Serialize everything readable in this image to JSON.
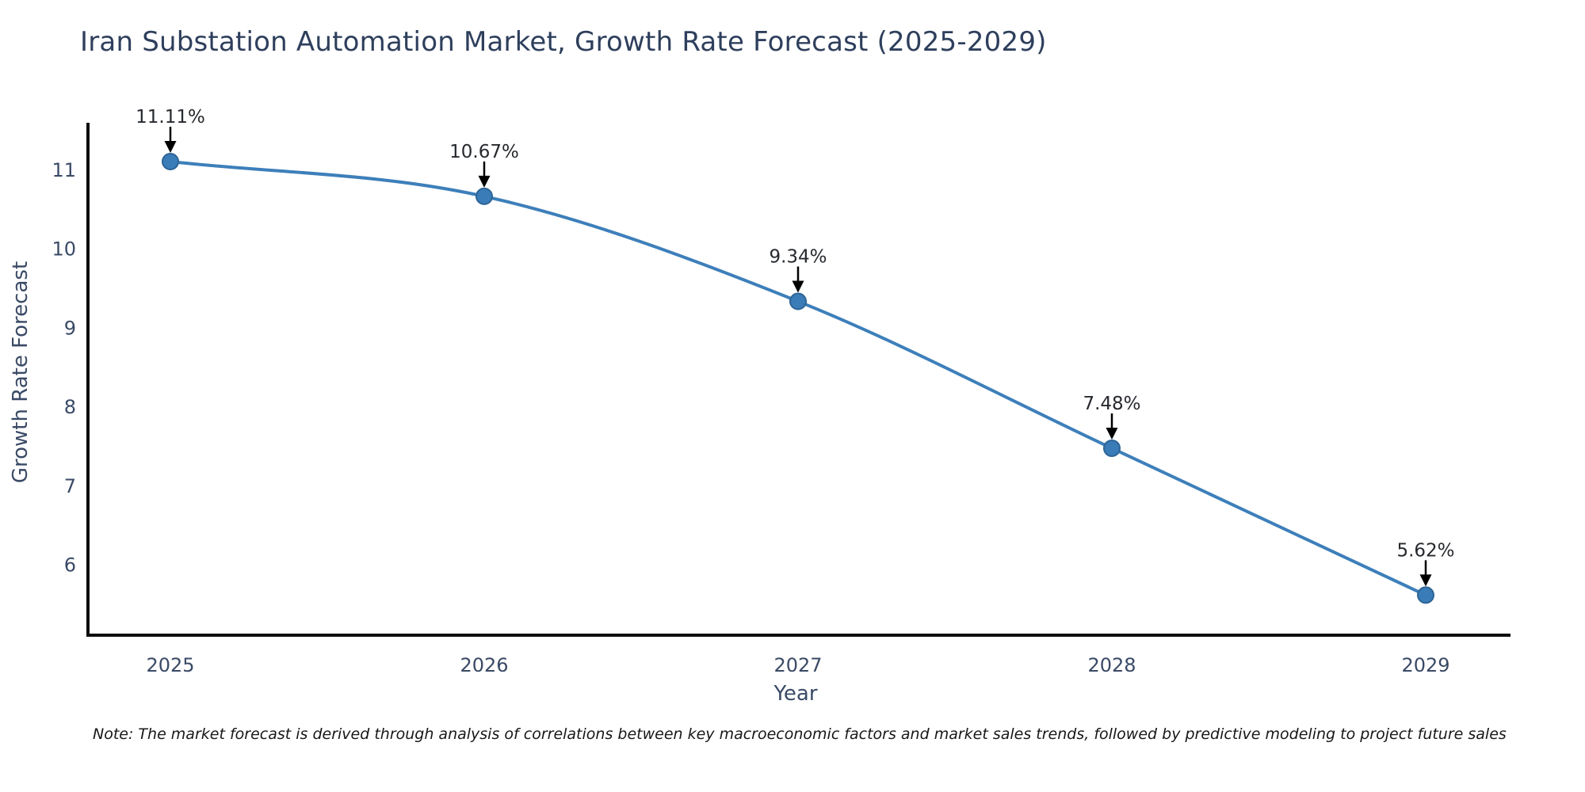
{
  "note": "Note: The market forecast is derived through analysis of correlations between key macroeconomic factors and market sales trends, followed by predictive modeling to project future sales",
  "colors": {
    "background": "#ffffff",
    "title_text": "#2e3f5c",
    "axis_spine": "#0d0d0d",
    "tick_text": "#3a4a66",
    "axis_label_text": "#3a4a66",
    "line": "#3d7fba",
    "marker_fill": "#3a7cb8",
    "marker_edge": "#2d6496",
    "annotation_text": "#26292e",
    "annotation_arrow": "#000000",
    "note_text": "#171717"
  },
  "chart_data": {
    "type": "line",
    "title": "Iran Substation Automation Market, Growth Rate Forecast (2025-2029)",
    "xlabel": "Year",
    "ylabel": "Growth Rate Forecast",
    "x": [
      2025,
      2026,
      2027,
      2028,
      2029
    ],
    "values": [
      11.11,
      10.67,
      9.34,
      7.48,
      5.62
    ],
    "labels": [
      "11.11%",
      "10.67%",
      "9.34%",
      "7.48%",
      "5.62%"
    ],
    "xticks": [
      "2025",
      "2026",
      "2027",
      "2028",
      "2029"
    ],
    "yticks": [
      6,
      7,
      8,
      9,
      10,
      11
    ],
    "ylim": [
      5.1,
      11.6
    ],
    "xlim": [
      2024.73,
      2029.27
    ],
    "grid": false,
    "legend": "none",
    "curve": "smooth",
    "marker": "circle"
  }
}
